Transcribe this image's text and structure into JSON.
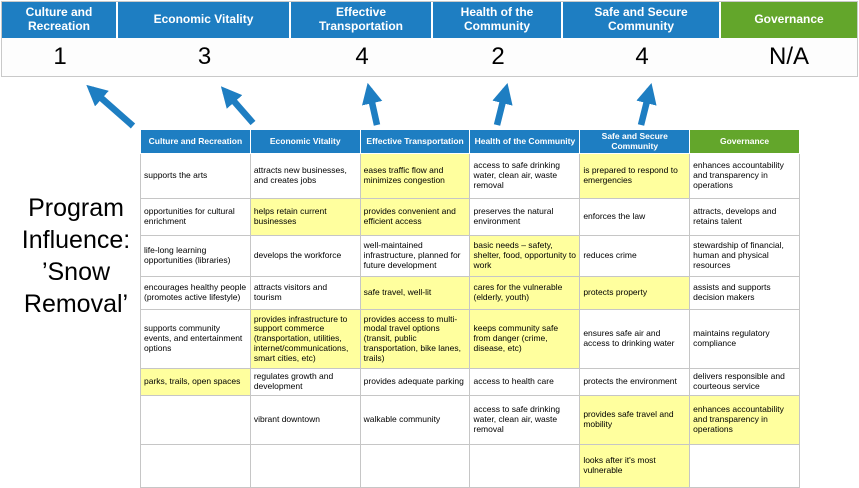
{
  "title": "Program Influence: ’Snow Removal’",
  "colors": {
    "blue": "#1e7ec2",
    "green": "#63a62b",
    "highlight": "#ffff9e",
    "arrow": "#1e7ec2",
    "border": "#c6c6c6"
  },
  "pillars": [
    {
      "label": "Culture and Recreation",
      "score": "1",
      "type": "blue"
    },
    {
      "label": "Economic Vitality",
      "score": "3",
      "type": "blue"
    },
    {
      "label": "Effective Transportation",
      "score": "4",
      "type": "blue"
    },
    {
      "label": "Health of the Community",
      "score": "2",
      "type": "blue"
    },
    {
      "label": "Safe and Secure Community",
      "score": "4",
      "type": "blue"
    },
    {
      "label": "Governance",
      "score": "N/A",
      "type": "green"
    }
  ],
  "matrix": {
    "headers": [
      {
        "label": "Culture and Recreation",
        "type": "blue"
      },
      {
        "label": "Economic Vitality",
        "type": "blue"
      },
      {
        "label": "Effective Transportation",
        "type": "blue"
      },
      {
        "label": "Health of the Community",
        "type": "blue"
      },
      {
        "label": "Safe and Secure Community",
        "type": "blue"
      },
      {
        "label": "Governance",
        "type": "green"
      }
    ],
    "rows": [
      [
        {
          "t": "supports the arts",
          "h": false
        },
        {
          "t": "attracts new businesses, and creates jobs",
          "h": false
        },
        {
          "t": "eases traffic flow and minimizes congestion",
          "h": true
        },
        {
          "t": "access to safe drinking water, clean air, waste removal",
          "h": false
        },
        {
          "t": "is prepared to respond to emergencies",
          "h": true
        },
        {
          "t": "enhances accountability and transparency in operations",
          "h": false
        }
      ],
      [
        {
          "t": "opportunities for cultural enrichment",
          "h": false
        },
        {
          "t": "helps retain current businesses",
          "h": true
        },
        {
          "t": "provides convenient and efficient access",
          "h": true
        },
        {
          "t": "preserves the natural environment",
          "h": false
        },
        {
          "t": "enforces the law",
          "h": false
        },
        {
          "t": "attracts, develops and retains talent",
          "h": false
        }
      ],
      [
        {
          "t": "life-long learning opportunities (libraries)",
          "h": false
        },
        {
          "t": "develops the workforce",
          "h": false
        },
        {
          "t": "well-maintained infrastructure, planned for future development",
          "h": false
        },
        {
          "t": "basic needs – safety, shelter, food, opportunity to work",
          "h": true
        },
        {
          "t": "reduces crime",
          "h": false
        },
        {
          "t": "stewardship of financial, human and physical resources",
          "h": false
        }
      ],
      [
        {
          "t": "encourages healthy people (promotes active lifestyle)",
          "h": false
        },
        {
          "t": "attracts visitors and tourism",
          "h": false
        },
        {
          "t": "safe travel, well-lit",
          "h": true
        },
        {
          "t": "cares for the vulnerable (elderly, youth)",
          "h": true
        },
        {
          "t": "protects property",
          "h": true
        },
        {
          "t": "assists and supports decision makers",
          "h": false
        }
      ],
      [
        {
          "t": "supports community events, and entertainment options",
          "h": false
        },
        {
          "t": "provides infrastructure to support commerce (transportation, utilities, internet/communications, smart cities, etc)",
          "h": true
        },
        {
          "t": "provides access to multi-modal travel options (transit, public transportation, bike lanes, trails)",
          "h": true
        },
        {
          "t": "keeps community safe from danger (crime, disease, etc)",
          "h": true
        },
        {
          "t": "ensures safe air and access to drinking water",
          "h": false
        },
        {
          "t": "maintains regulatory compliance",
          "h": false
        }
      ],
      [
        {
          "t": "parks, trails, open spaces",
          "h": true
        },
        {
          "t": "regulates growth and development",
          "h": false
        },
        {
          "t": "provides adequate parking",
          "h": false
        },
        {
          "t": "access to health care",
          "h": false
        },
        {
          "t": "protects the environment",
          "h": false
        },
        {
          "t": "delivers responsible and courteous service",
          "h": false
        }
      ],
      [
        {
          "t": "",
          "h": false
        },
        {
          "t": "vibrant downtown",
          "h": false
        },
        {
          "t": "walkable community",
          "h": false
        },
        {
          "t": "access to safe drinking water, clean air, waste removal",
          "h": false
        },
        {
          "t": "provides safe travel and mobility",
          "h": true
        },
        {
          "t": "enhances accountability and transparency in operations",
          "h": true
        }
      ],
      [
        {
          "t": "",
          "h": false
        },
        {
          "t": "",
          "h": false
        },
        {
          "t": "",
          "h": false
        },
        {
          "t": "",
          "h": false
        },
        {
          "t": "looks after it's most vulnerable",
          "h": true
        },
        {
          "t": "",
          "h": false
        }
      ]
    ]
  }
}
